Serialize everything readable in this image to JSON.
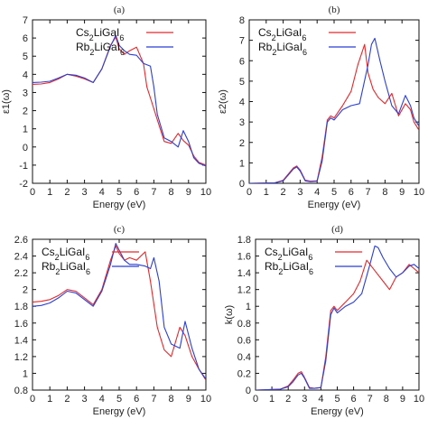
{
  "colors": {
    "red": "#e8272a",
    "blue": "#2b3fd4"
  },
  "chart_data": [
    {
      "type": "line",
      "panel": "(a)",
      "xlabel": "Energy (eV)",
      "ylabel": "ε1(ω)",
      "xlim": [
        0,
        10
      ],
      "ylim": [
        -2,
        7
      ],
      "xticks": [
        0,
        1,
        2,
        3,
        4,
        5,
        6,
        7,
        8,
        9,
        10
      ],
      "yticks": [
        -2,
        -1,
        0,
        1,
        2,
        3,
        4,
        5,
        6,
        7
      ],
      "legend": "top-center",
      "series": [
        {
          "name": "Cs2LiGaI6",
          "color": "red",
          "x": [
            0,
            0.5,
            1,
            1.5,
            2,
            2.5,
            3,
            3.5,
            4,
            4.5,
            4.8,
            5,
            5.3,
            5.6,
            6,
            6.4,
            6.6,
            6.8,
            7.2,
            7.6,
            8,
            8.4,
            8.7,
            9,
            9.3,
            9.6,
            10
          ],
          "y": [
            3.45,
            3.47,
            3.55,
            3.75,
            4.0,
            3.9,
            3.75,
            3.55,
            4.3,
            5.6,
            6.05,
            5.4,
            5.1,
            5.3,
            5.5,
            4.6,
            3.3,
            2.7,
            1.5,
            0.3,
            0.2,
            0.75,
            0.35,
            0.1,
            -0.5,
            -0.85,
            -1.0
          ]
        },
        {
          "name": "Rb2LiGaI6",
          "color": "blue",
          "x": [
            0,
            0.5,
            1,
            1.5,
            2,
            2.5,
            3,
            3.5,
            4,
            4.5,
            4.8,
            5,
            5.3,
            5.6,
            6,
            6.4,
            6.8,
            7,
            7.2,
            7.6,
            8,
            8.4,
            8.7,
            9,
            9.3,
            9.6,
            10
          ],
          "y": [
            3.55,
            3.57,
            3.62,
            3.8,
            4.0,
            3.95,
            3.8,
            3.55,
            4.3,
            5.55,
            6.15,
            5.6,
            5.3,
            5.1,
            5.05,
            4.6,
            4.45,
            3.3,
            1.8,
            0.5,
            0.3,
            0.0,
            0.9,
            0.3,
            -0.6,
            -0.9,
            -1.05
          ]
        }
      ]
    },
    {
      "type": "line",
      "panel": "(b)",
      "xlabel": "Energy (eV)",
      "ylabel": "ε2(ω)",
      "xlim": [
        0,
        10
      ],
      "ylim": [
        0,
        8
      ],
      "xticks": [
        0,
        1,
        2,
        3,
        4,
        5,
        6,
        7,
        8,
        9,
        10
      ],
      "yticks": [
        0,
        1,
        2,
        3,
        4,
        5,
        6,
        7,
        8
      ],
      "legend": "top-left",
      "series": [
        {
          "name": "Cs2LiGaI6",
          "color": "red",
          "x": [
            0,
            1.5,
            2,
            2.3,
            2.6,
            2.8,
            3,
            3.3,
            3.6,
            4,
            4.3,
            4.6,
            4.8,
            5,
            5.5,
            6,
            6.4,
            6.8,
            7,
            7.3,
            7.6,
            8,
            8.4,
            8.8,
            9.2,
            9.5,
            9.7,
            10
          ],
          "y": [
            0,
            0.02,
            0.15,
            0.45,
            0.75,
            0.85,
            0.65,
            0.15,
            0.1,
            0.12,
            1.3,
            3.1,
            3.3,
            3.2,
            3.8,
            4.5,
            5.8,
            6.8,
            5.4,
            4.6,
            4.2,
            3.9,
            4.4,
            3.3,
            3.9,
            3.6,
            3.0,
            2.6
          ]
        },
        {
          "name": "Rb2LiGaI6",
          "color": "blue",
          "x": [
            0,
            1.5,
            2,
            2.3,
            2.6,
            2.8,
            3,
            3.3,
            3.6,
            4,
            4.3,
            4.6,
            4.8,
            5,
            5.5,
            6,
            6.5,
            7,
            7.2,
            7.4,
            7.7,
            8,
            8.4,
            8.8,
            9.2,
            9.5,
            9.7,
            10
          ],
          "y": [
            0,
            0.02,
            0.12,
            0.4,
            0.7,
            0.8,
            0.6,
            0.12,
            0.08,
            0.1,
            1.1,
            3.0,
            3.2,
            3.1,
            3.6,
            3.8,
            3.9,
            5.8,
            6.8,
            7.1,
            6.0,
            5.0,
            3.8,
            3.4,
            4.3,
            3.8,
            3.2,
            2.8
          ]
        }
      ]
    },
    {
      "type": "line",
      "panel": "(c)",
      "xlabel": "Energy (eV)",
      "ylabel": "",
      "xlim": [
        0,
        10
      ],
      "ylim": [
        0.8,
        2.6
      ],
      "xticks": [
        0,
        1,
        2,
        3,
        4,
        5,
        6,
        7,
        8,
        9,
        10
      ],
      "yticks": [
        0.8,
        1,
        1.2,
        1.4,
        1.6,
        1.8,
        2,
        2.2,
        2.4,
        2.6
      ],
      "legend": "top-left",
      "series": [
        {
          "name": "Cs2LiGaI6",
          "color": "red",
          "x": [
            0,
            0.5,
            1,
            1.5,
            2,
            2.5,
            3,
            3.5,
            4,
            4.5,
            4.8,
            5,
            5.3,
            5.6,
            6,
            6.5,
            6.8,
            7.2,
            7.6,
            8,
            8.5,
            8.8,
            9.2,
            9.6,
            10
          ],
          "y": [
            1.85,
            1.86,
            1.88,
            1.93,
            2.0,
            1.98,
            1.9,
            1.82,
            2.0,
            2.35,
            2.52,
            2.43,
            2.35,
            2.38,
            2.35,
            2.45,
            2.1,
            1.55,
            1.28,
            1.2,
            1.55,
            1.45,
            1.2,
            1.05,
            0.92
          ]
        },
        {
          "name": "Rb2LiGaI6",
          "color": "blue",
          "x": [
            0,
            0.5,
            1,
            1.5,
            2,
            2.5,
            3,
            3.5,
            4,
            4.5,
            4.8,
            5,
            5.3,
            5.6,
            6,
            6.5,
            6.8,
            7,
            7.3,
            7.6,
            8,
            8.5,
            8.8,
            9.2,
            9.6,
            10
          ],
          "y": [
            1.8,
            1.81,
            1.84,
            1.9,
            1.98,
            1.96,
            1.88,
            1.8,
            1.98,
            2.3,
            2.55,
            2.47,
            2.35,
            2.3,
            2.3,
            2.28,
            2.25,
            2.38,
            2.1,
            1.55,
            1.35,
            1.3,
            1.62,
            1.3,
            1.05,
            0.93
          ]
        }
      ]
    },
    {
      "type": "line",
      "panel": "(d)",
      "xlabel": "Energy (eV)",
      "ylabel": "k(ω)",
      "xlim": [
        0,
        10
      ],
      "ylim": [
        0,
        1.8
      ],
      "xticks": [
        0,
        1,
        2,
        3,
        4,
        5,
        6,
        7,
        8,
        9,
        10
      ],
      "yticks": [
        0,
        0.2,
        0.4,
        0.6,
        0.8,
        1,
        1.2,
        1.4,
        1.6,
        1.8
      ],
      "legend": "top-left",
      "series": [
        {
          "name": "Cs2LiGaI6",
          "color": "red",
          "x": [
            0,
            1.5,
            2,
            2.3,
            2.6,
            2.8,
            3,
            3.3,
            3.6,
            4,
            4.3,
            4.6,
            4.8,
            5,
            5.5,
            6,
            6.4,
            6.8,
            7,
            7.4,
            7.8,
            8.2,
            8.6,
            9,
            9.4,
            9.7,
            10
          ],
          "y": [
            0,
            0.01,
            0.05,
            0.12,
            0.2,
            0.22,
            0.15,
            0.03,
            0.02,
            0.03,
            0.4,
            0.95,
            1.0,
            0.95,
            1.05,
            1.15,
            1.3,
            1.55,
            1.5,
            1.4,
            1.3,
            1.2,
            1.35,
            1.4,
            1.5,
            1.45,
            1.4
          ]
        },
        {
          "name": "Rb2LiGaI6",
          "color": "blue",
          "x": [
            0,
            1.5,
            2,
            2.3,
            2.6,
            2.8,
            3,
            3.3,
            3.6,
            4,
            4.3,
            4.6,
            4.8,
            5,
            5.5,
            6,
            6.5,
            7,
            7.3,
            7.5,
            7.8,
            8.2,
            8.6,
            9,
            9.4,
            9.7,
            10
          ],
          "y": [
            0,
            0.01,
            0.04,
            0.1,
            0.18,
            0.2,
            0.14,
            0.02,
            0.02,
            0.03,
            0.35,
            0.9,
            0.98,
            0.92,
            1.0,
            1.05,
            1.15,
            1.5,
            1.72,
            1.7,
            1.58,
            1.45,
            1.35,
            1.4,
            1.48,
            1.5,
            1.45
          ]
        }
      ]
    }
  ]
}
